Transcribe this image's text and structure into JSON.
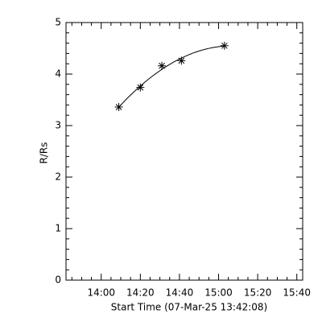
{
  "chart_data": {
    "type": "scatter",
    "xlabel": "Start Time (07-Mar-25 13:42:08)",
    "ylabel": "R/Rs",
    "xlim": [
      822,
      943
    ],
    "ylim": [
      0,
      5
    ],
    "xticks": [
      {
        "value": 840,
        "label": "14:00"
      },
      {
        "value": 860,
        "label": "14:20"
      },
      {
        "value": 880,
        "label": "14:40"
      },
      {
        "value": 900,
        "label": "15:00"
      },
      {
        "value": 920,
        "label": "15:20"
      },
      {
        "value": 940,
        "label": "15:40"
      }
    ],
    "yticks": [
      0,
      1,
      2,
      3,
      4,
      5
    ],
    "fit": "quadratic",
    "color": "#000000",
    "series": [
      {
        "x": [
          849,
          860,
          871,
          881,
          903
        ],
        "values": [
          3.36,
          3.74,
          4.16,
          4.26,
          4.55
        ]
      }
    ]
  }
}
